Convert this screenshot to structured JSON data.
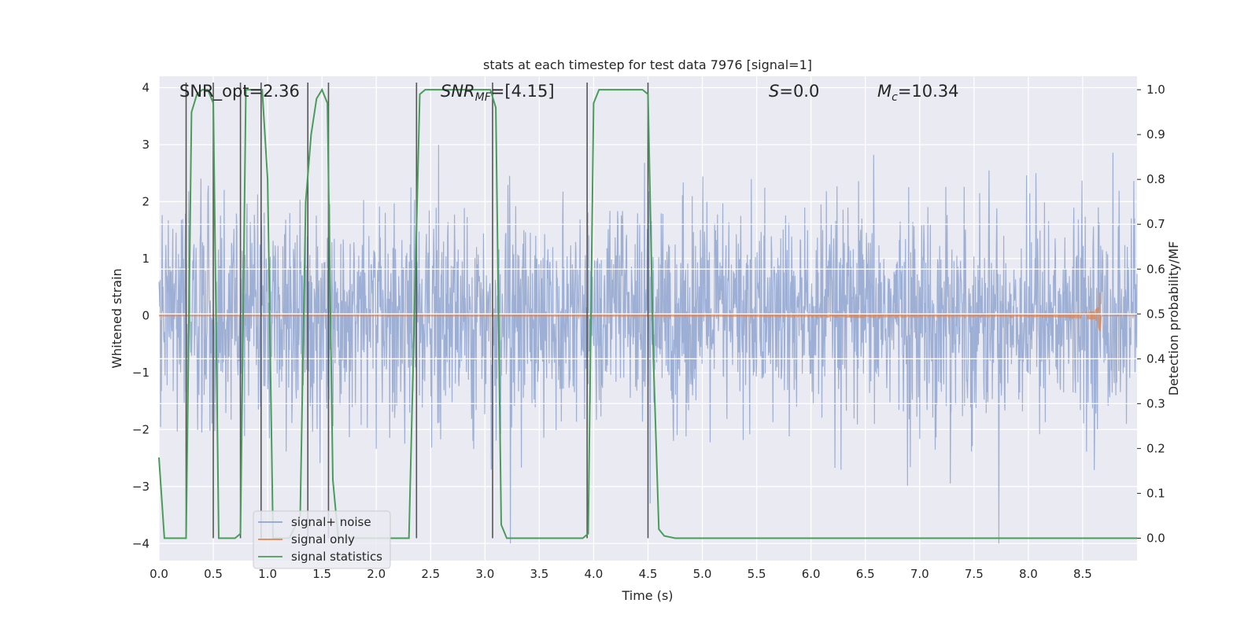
{
  "chart_data": {
    "type": "line",
    "title": "stats at each timestep for test data 7976 [signal=1]",
    "xlabel": "Time (s)",
    "ylabel_left": "Whitened strain",
    "ylabel_right": "Detection probability/MF",
    "xlim": [
      0.0,
      9.0
    ],
    "ylim_left": [
      -4.3,
      4.2
    ],
    "ylim_right": [
      -0.05,
      1.03
    ],
    "x_ticks": [
      "0.0",
      "0.5",
      "1.0",
      "1.5",
      "2.0",
      "2.5",
      "3.0",
      "3.5",
      "4.0",
      "4.5",
      "5.0",
      "5.5",
      "6.0",
      "6.5",
      "7.0",
      "7.5",
      "8.0",
      "8.5"
    ],
    "y_ticks_left": [
      "4",
      "3",
      "2",
      "1",
      "0",
      "−1",
      "−2",
      "−3",
      "−4"
    ],
    "y_ticks_right": [
      "1.0",
      "0.9",
      "0.8",
      "0.7",
      "0.6",
      "0.5",
      "0.4",
      "0.3",
      "0.2",
      "0.1",
      "0.0"
    ],
    "extra_gridlines_right": [
      0.7,
      0.6,
      0.5,
      0.4,
      0.3
    ],
    "annotations": {
      "snr_opt": "SNR_opt=2.36",
      "snr_mf": "=[4.15]",
      "snr_mf_base": "SNR",
      "snr_mf_sub": "MF",
      "s_stat": "=0.0",
      "s_symbol": "S",
      "mc": "=10.34",
      "mc_base": "M",
      "mc_sub": "c"
    },
    "series": [
      {
        "name": "signal+ noise",
        "color": "#8fa4cf",
        "description": "whitened noisy strain, approx. std 0.9, peaks to about ±3.9",
        "amplitude_std": 0.9,
        "range": [
          -4.0,
          3.9
        ]
      },
      {
        "name": "signal only",
        "color": "#dd8452",
        "description": "chirp waveform growing toward merger near t=8.65 s",
        "merger_time": 8.66,
        "peak_amplitude": 0.45
      },
      {
        "name": "signal statistics",
        "color": "#4a9c5a",
        "axis": "right",
        "x": [
          0.0,
          0.05,
          0.25,
          0.3,
          0.35,
          0.4,
          0.45,
          0.5,
          0.55,
          0.6,
          0.7,
          0.75,
          0.8,
          0.9,
          0.95,
          1.0,
          1.05,
          1.1,
          1.2,
          1.3,
          1.35,
          1.4,
          1.45,
          1.5,
          1.55,
          1.6,
          1.65,
          1.7,
          1.8,
          2.0,
          2.3,
          2.35,
          2.4,
          2.45,
          2.5,
          3.05,
          3.1,
          3.15,
          3.2,
          3.9,
          3.95,
          4.0,
          4.05,
          4.45,
          4.5,
          4.55,
          4.6,
          4.65,
          4.75,
          9.0
        ],
        "y": [
          0.18,
          0.0,
          0.0,
          0.95,
          0.99,
          1.0,
          1.0,
          0.97,
          0.0,
          0.0,
          0.0,
          0.01,
          1.0,
          1.0,
          1.0,
          0.8,
          0.0,
          0.0,
          0.0,
          0.05,
          0.75,
          0.9,
          0.98,
          1.0,
          0.97,
          0.13,
          0.0,
          0.0,
          0.0,
          0.0,
          0.0,
          0.5,
          0.99,
          1.0,
          1.0,
          1.0,
          0.96,
          0.03,
          0.0,
          0.0,
          0.01,
          0.97,
          1.0,
          1.0,
          0.99,
          0.4,
          0.02,
          0.005,
          0.0,
          0.0
        ]
      }
    ],
    "vertical_markers": [
      0.25,
      0.5,
      0.75,
      0.94,
      1.37,
      1.56,
      2.37,
      3.07,
      3.94,
      4.5
    ],
    "marker_color": "#555555",
    "legend_position": "lower-left",
    "grid": true,
    "background": "#eaeaf2"
  }
}
